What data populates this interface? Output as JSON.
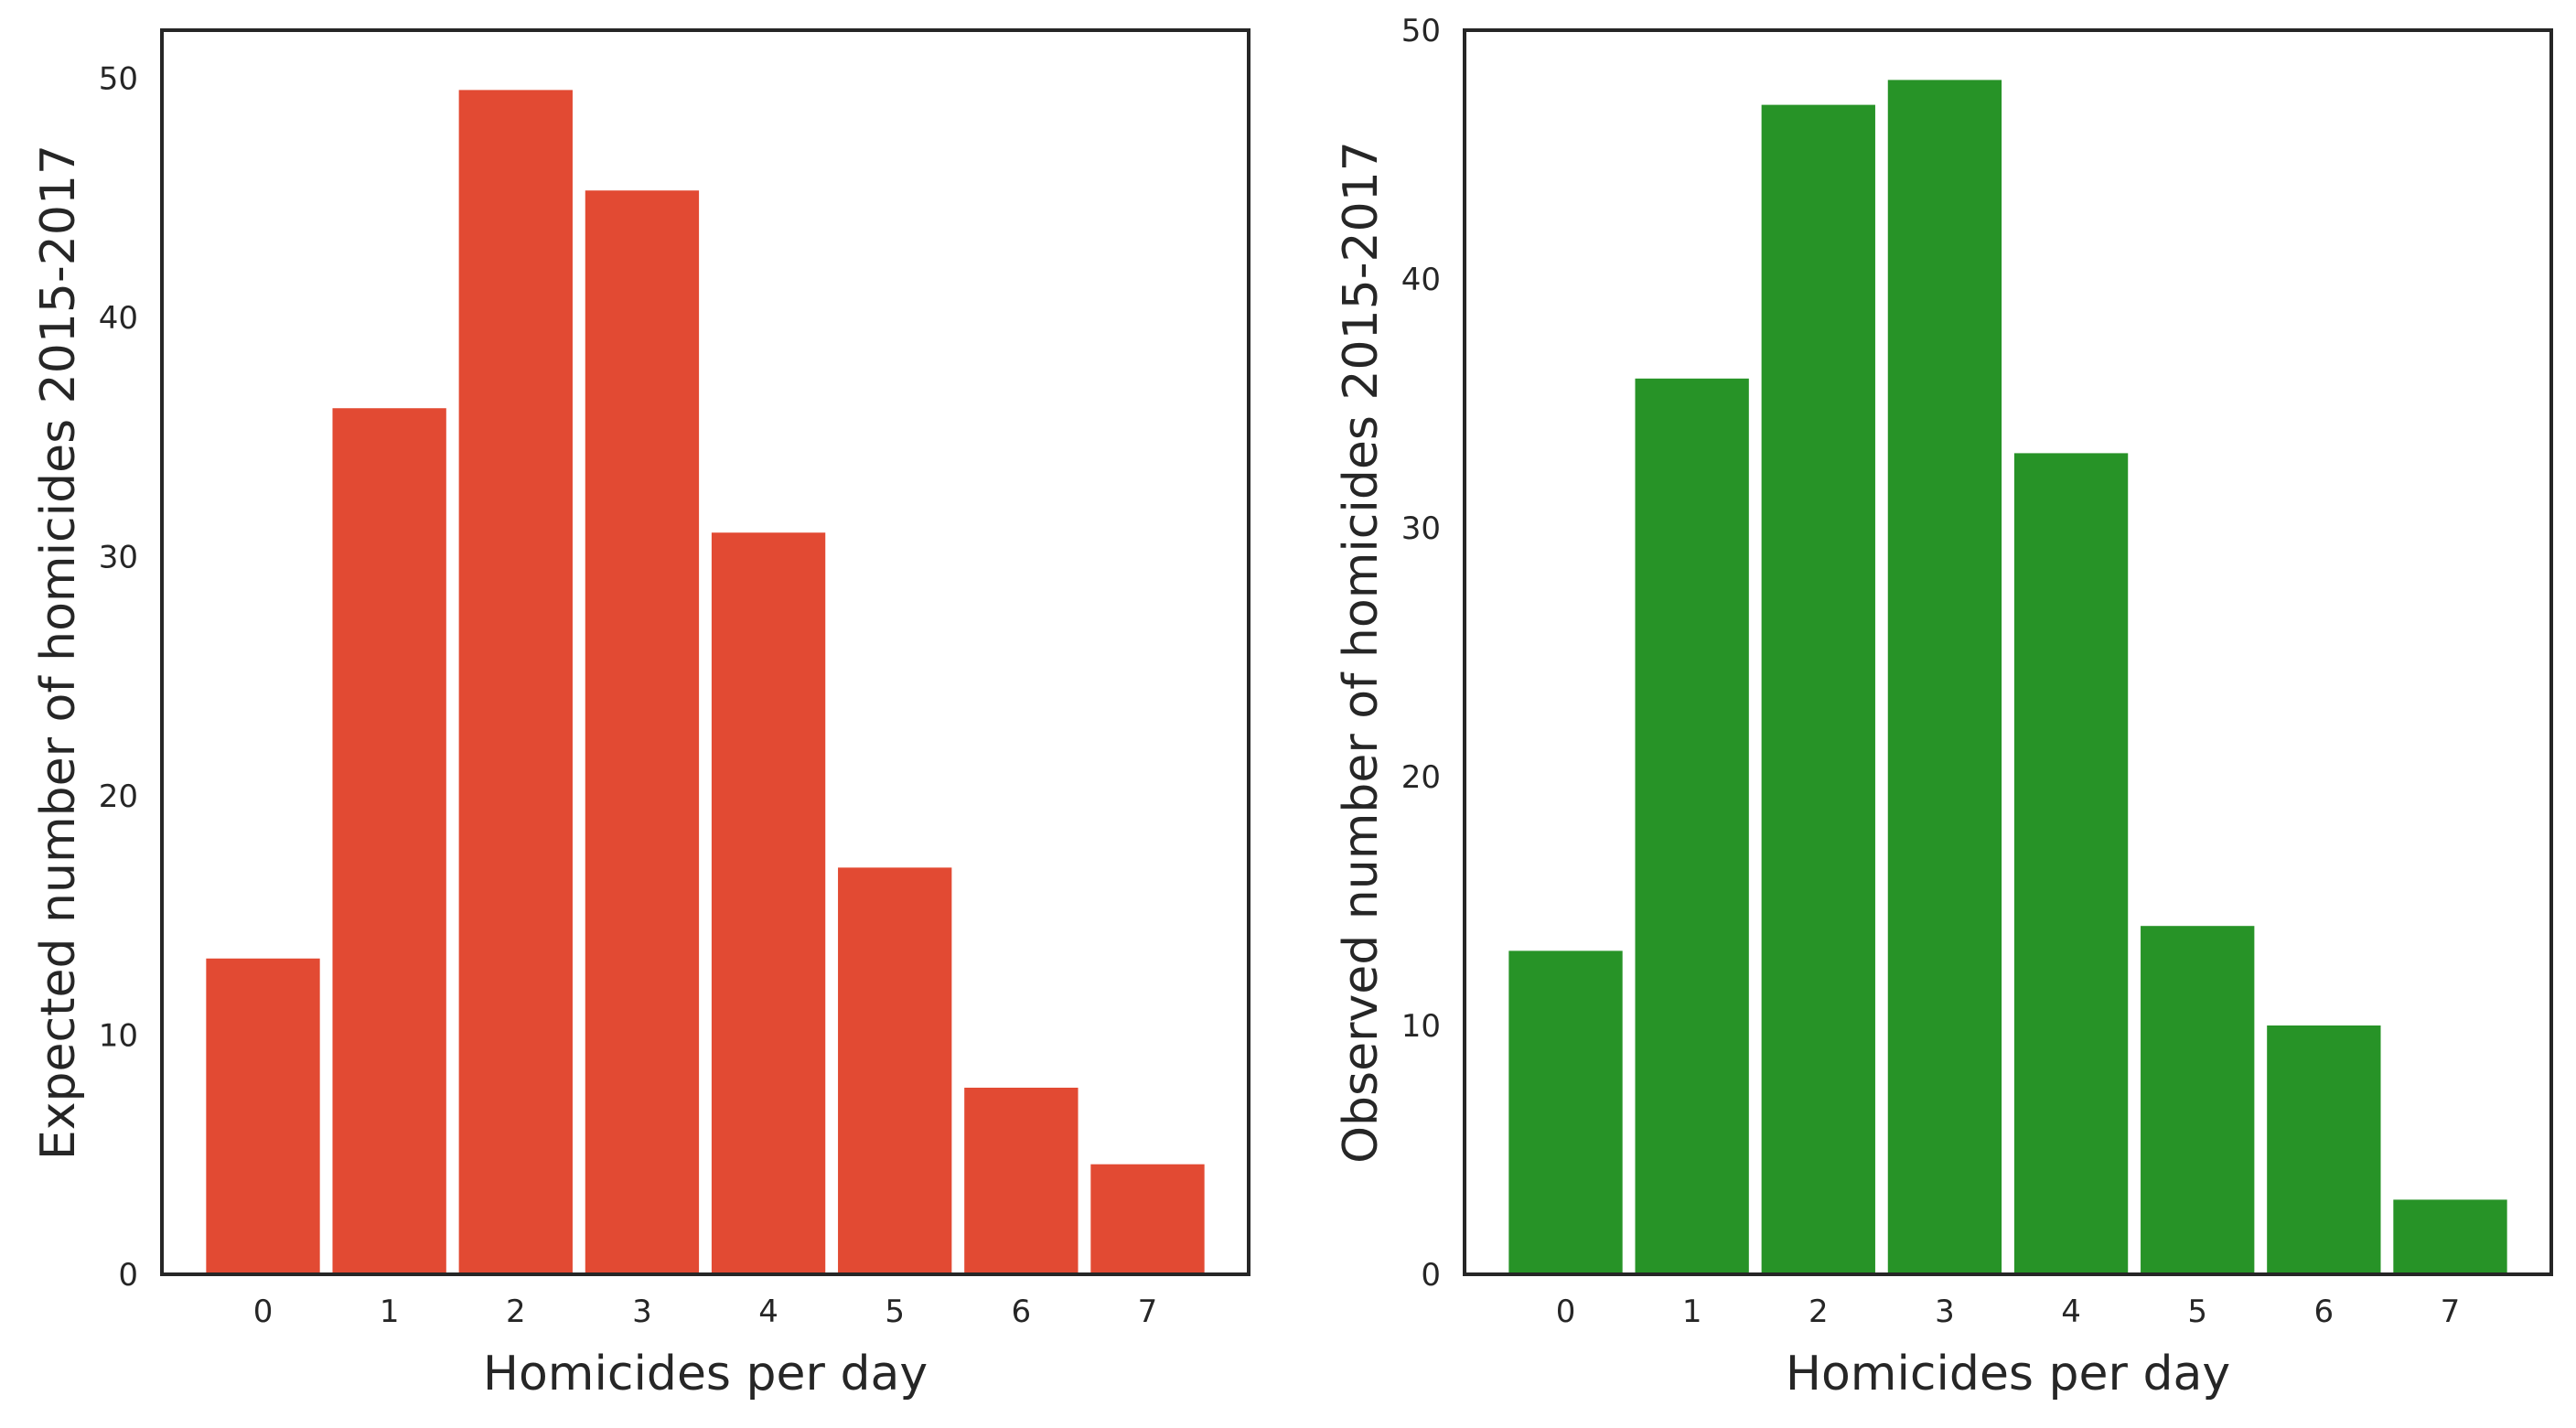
{
  "chart_data": [
    {
      "type": "bar",
      "color": "#e24a33",
      "categories": [
        "0",
        "1",
        "2",
        "3",
        "4",
        "5",
        "6",
        "7"
      ],
      "values": [
        13.2,
        36.2,
        49.5,
        45.3,
        31.0,
        17.0,
        7.8,
        4.6
      ],
      "xlabel": "Homicides per day",
      "ylabel": "Expected number of homicides 2015-2017",
      "ylim": [
        0,
        52
      ],
      "yticks": [
        "0",
        "10",
        "20",
        "30",
        "40",
        "50"
      ],
      "grid": false
    },
    {
      "type": "bar",
      "color": "#279327",
      "categories": [
        "0",
        "1",
        "2",
        "3",
        "4",
        "5",
        "6",
        "7"
      ],
      "values": [
        13,
        36,
        47,
        48,
        33,
        14,
        10,
        3
      ],
      "xlabel": "Homicides per day",
      "ylabel": "Observed number of homicides 2015-2017",
      "ylim": [
        0,
        50
      ],
      "yticks": [
        "0",
        "10",
        "20",
        "30",
        "40",
        "50"
      ],
      "grid": false
    }
  ]
}
